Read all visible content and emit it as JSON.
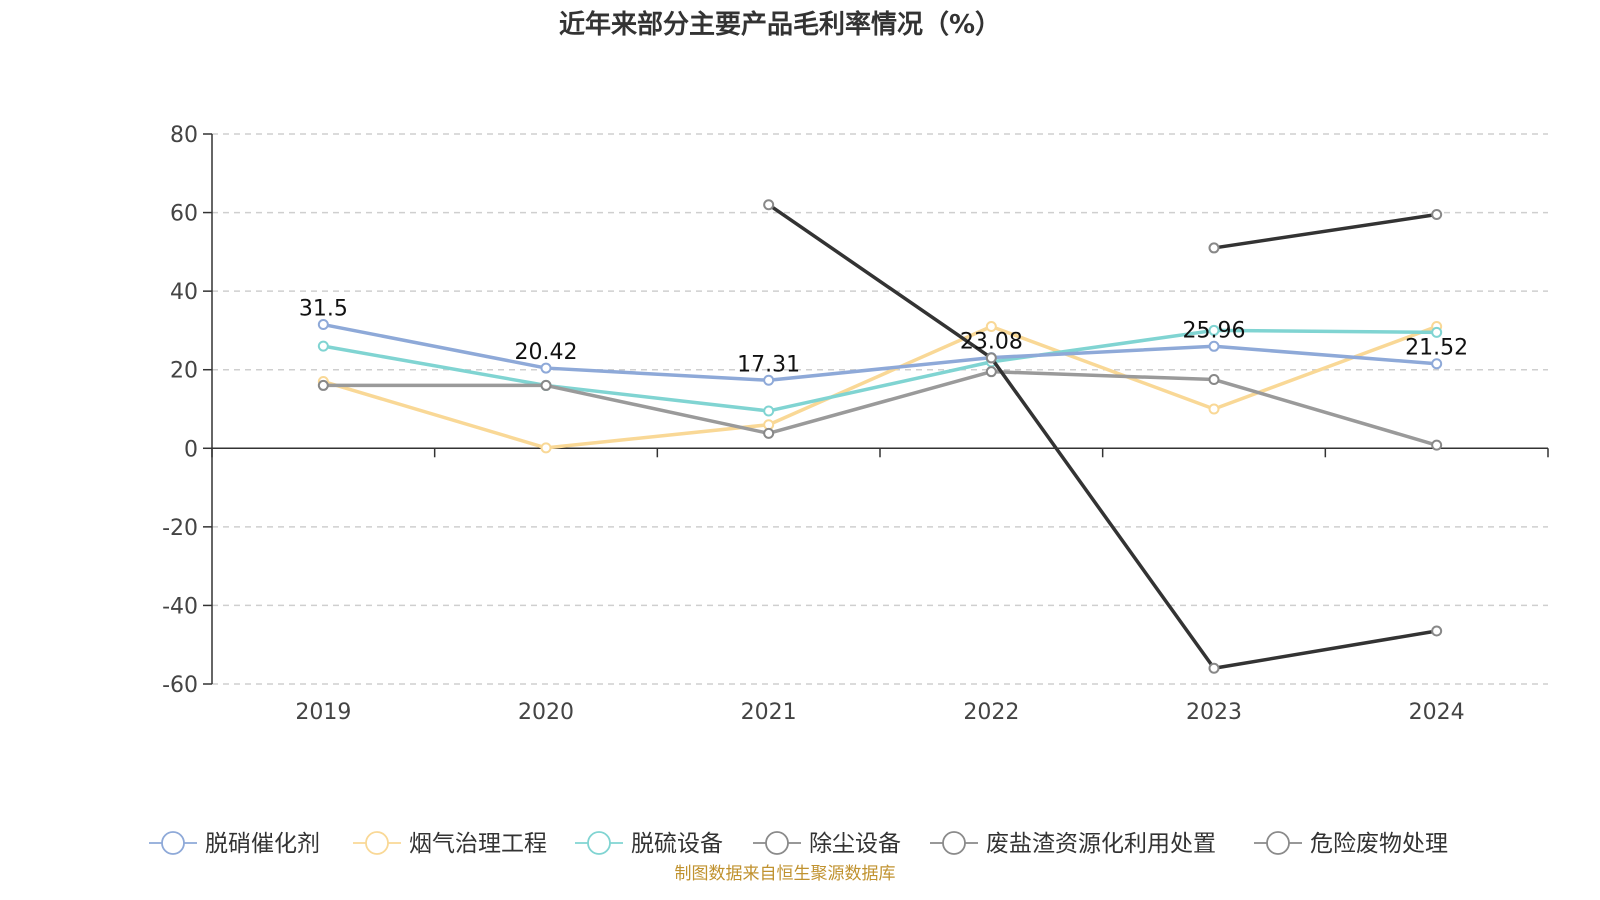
{
  "chart_data": {
    "type": "line",
    "title": "近年来部分主要产品毛利率情况（%）",
    "categories": [
      "2019",
      "2020",
      "2021",
      "2022",
      "2023",
      "2024"
    ],
    "ylim": [
      -60,
      80
    ],
    "yticks": [
      80,
      60,
      40,
      20,
      0,
      -20,
      -40,
      -60
    ],
    "grid": true,
    "legend_position": "bottom",
    "series": [
      {
        "name": "脱硝催化剂",
        "color": "#8ea9d8",
        "values": [
          31.5,
          20.42,
          17.31,
          23.08,
          25.96,
          21.52
        ],
        "labels": [
          "31.5",
          "20.42",
          "17.31",
          "23.08",
          "25.96",
          "21.52"
        ]
      },
      {
        "name": "烟气治理工程",
        "color": "#f9d896",
        "values": [
          17.0,
          0.1,
          6.0,
          31.0,
          10.0,
          31.0
        ]
      },
      {
        "name": "脱硫设备",
        "color": "#80d4d2",
        "values": [
          26.0,
          16.0,
          9.5,
          22.0,
          30.0,
          29.5
        ]
      },
      {
        "name": "除尘设备",
        "color": "#9a9a9a",
        "values": [
          16.0,
          16.0,
          3.8,
          19.5,
          17.5,
          0.8
        ]
      },
      {
        "name": "废盐渣资源化利用处置",
        "color": "#333333",
        "values": [
          null,
          null,
          62.0,
          23.0,
          -56.0,
          -46.5
        ]
      },
      {
        "name": "危险废物处理",
        "color": "#333333",
        "values": [
          null,
          null,
          null,
          null,
          51.0,
          59.5
        ]
      }
    ]
  },
  "source_note": "制图数据来自恒生聚源数据库"
}
